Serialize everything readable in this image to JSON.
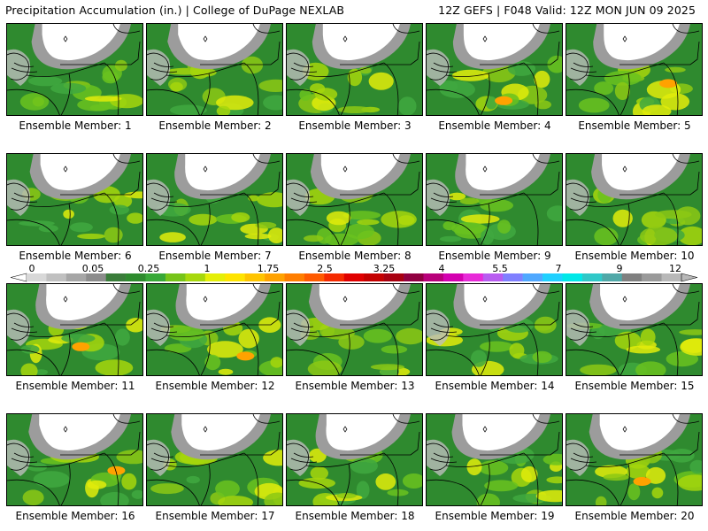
{
  "header": {
    "title_left": "Precipitation Accumulation (in.) | College of DuPage NEXLAB",
    "title_right": "12Z GEFS | F048 Valid: 12Z MON JUN 09 2025"
  },
  "panels": [
    {
      "label": "Ensemble Member: 1"
    },
    {
      "label": "Ensemble Member: 2"
    },
    {
      "label": "Ensemble Member: 3"
    },
    {
      "label": "Ensemble Member: 4"
    },
    {
      "label": "Ensemble Member: 5"
    },
    {
      "label": "Ensemble Member: 6"
    },
    {
      "label": "Ensemble Member: 7"
    },
    {
      "label": "Ensemble Member: 8"
    },
    {
      "label": "Ensemble Member: 9"
    },
    {
      "label": "Ensemble Member: 10"
    },
    {
      "label": "Ensemble Member: 11"
    },
    {
      "label": "Ensemble Member: 12"
    },
    {
      "label": "Ensemble Member: 13"
    },
    {
      "label": "Ensemble Member: 14"
    },
    {
      "label": "Ensemble Member: 15"
    },
    {
      "label": "Ensemble Member: 16"
    },
    {
      "label": "Ensemble Member: 17"
    },
    {
      "label": "Ensemble Member: 18"
    },
    {
      "label": "Ensemble Member: 19"
    },
    {
      "label": "Ensemble Member: 20"
    }
  ],
  "colorbar": {
    "labels": [
      "0",
      "0.05",
      "0.25",
      "1",
      "1.75",
      "2.5",
      "3.25",
      "4",
      "5.5",
      "7",
      "9",
      "12"
    ],
    "colors": [
      "#d8d8d8",
      "#c0c0c0",
      "#a6a6a6",
      "#8c8c8c",
      "#3a7d3a",
      "#2e8b2e",
      "#38a838",
      "#76c419",
      "#a7d80c",
      "#e5ef08",
      "#ffe400",
      "#ffc400",
      "#ffa200",
      "#ff7e00",
      "#ff5a00",
      "#f52a00",
      "#e00000",
      "#c40000",
      "#a80010",
      "#900040",
      "#b8007a",
      "#d400b0",
      "#e82ad8",
      "#b85cf0",
      "#8080ff",
      "#50a8ff",
      "#20d0ff",
      "#00e8e8",
      "#30c8c8",
      "#50a8a8",
      "#808080",
      "#9a9a9a",
      "#b8b8b8"
    ]
  }
}
